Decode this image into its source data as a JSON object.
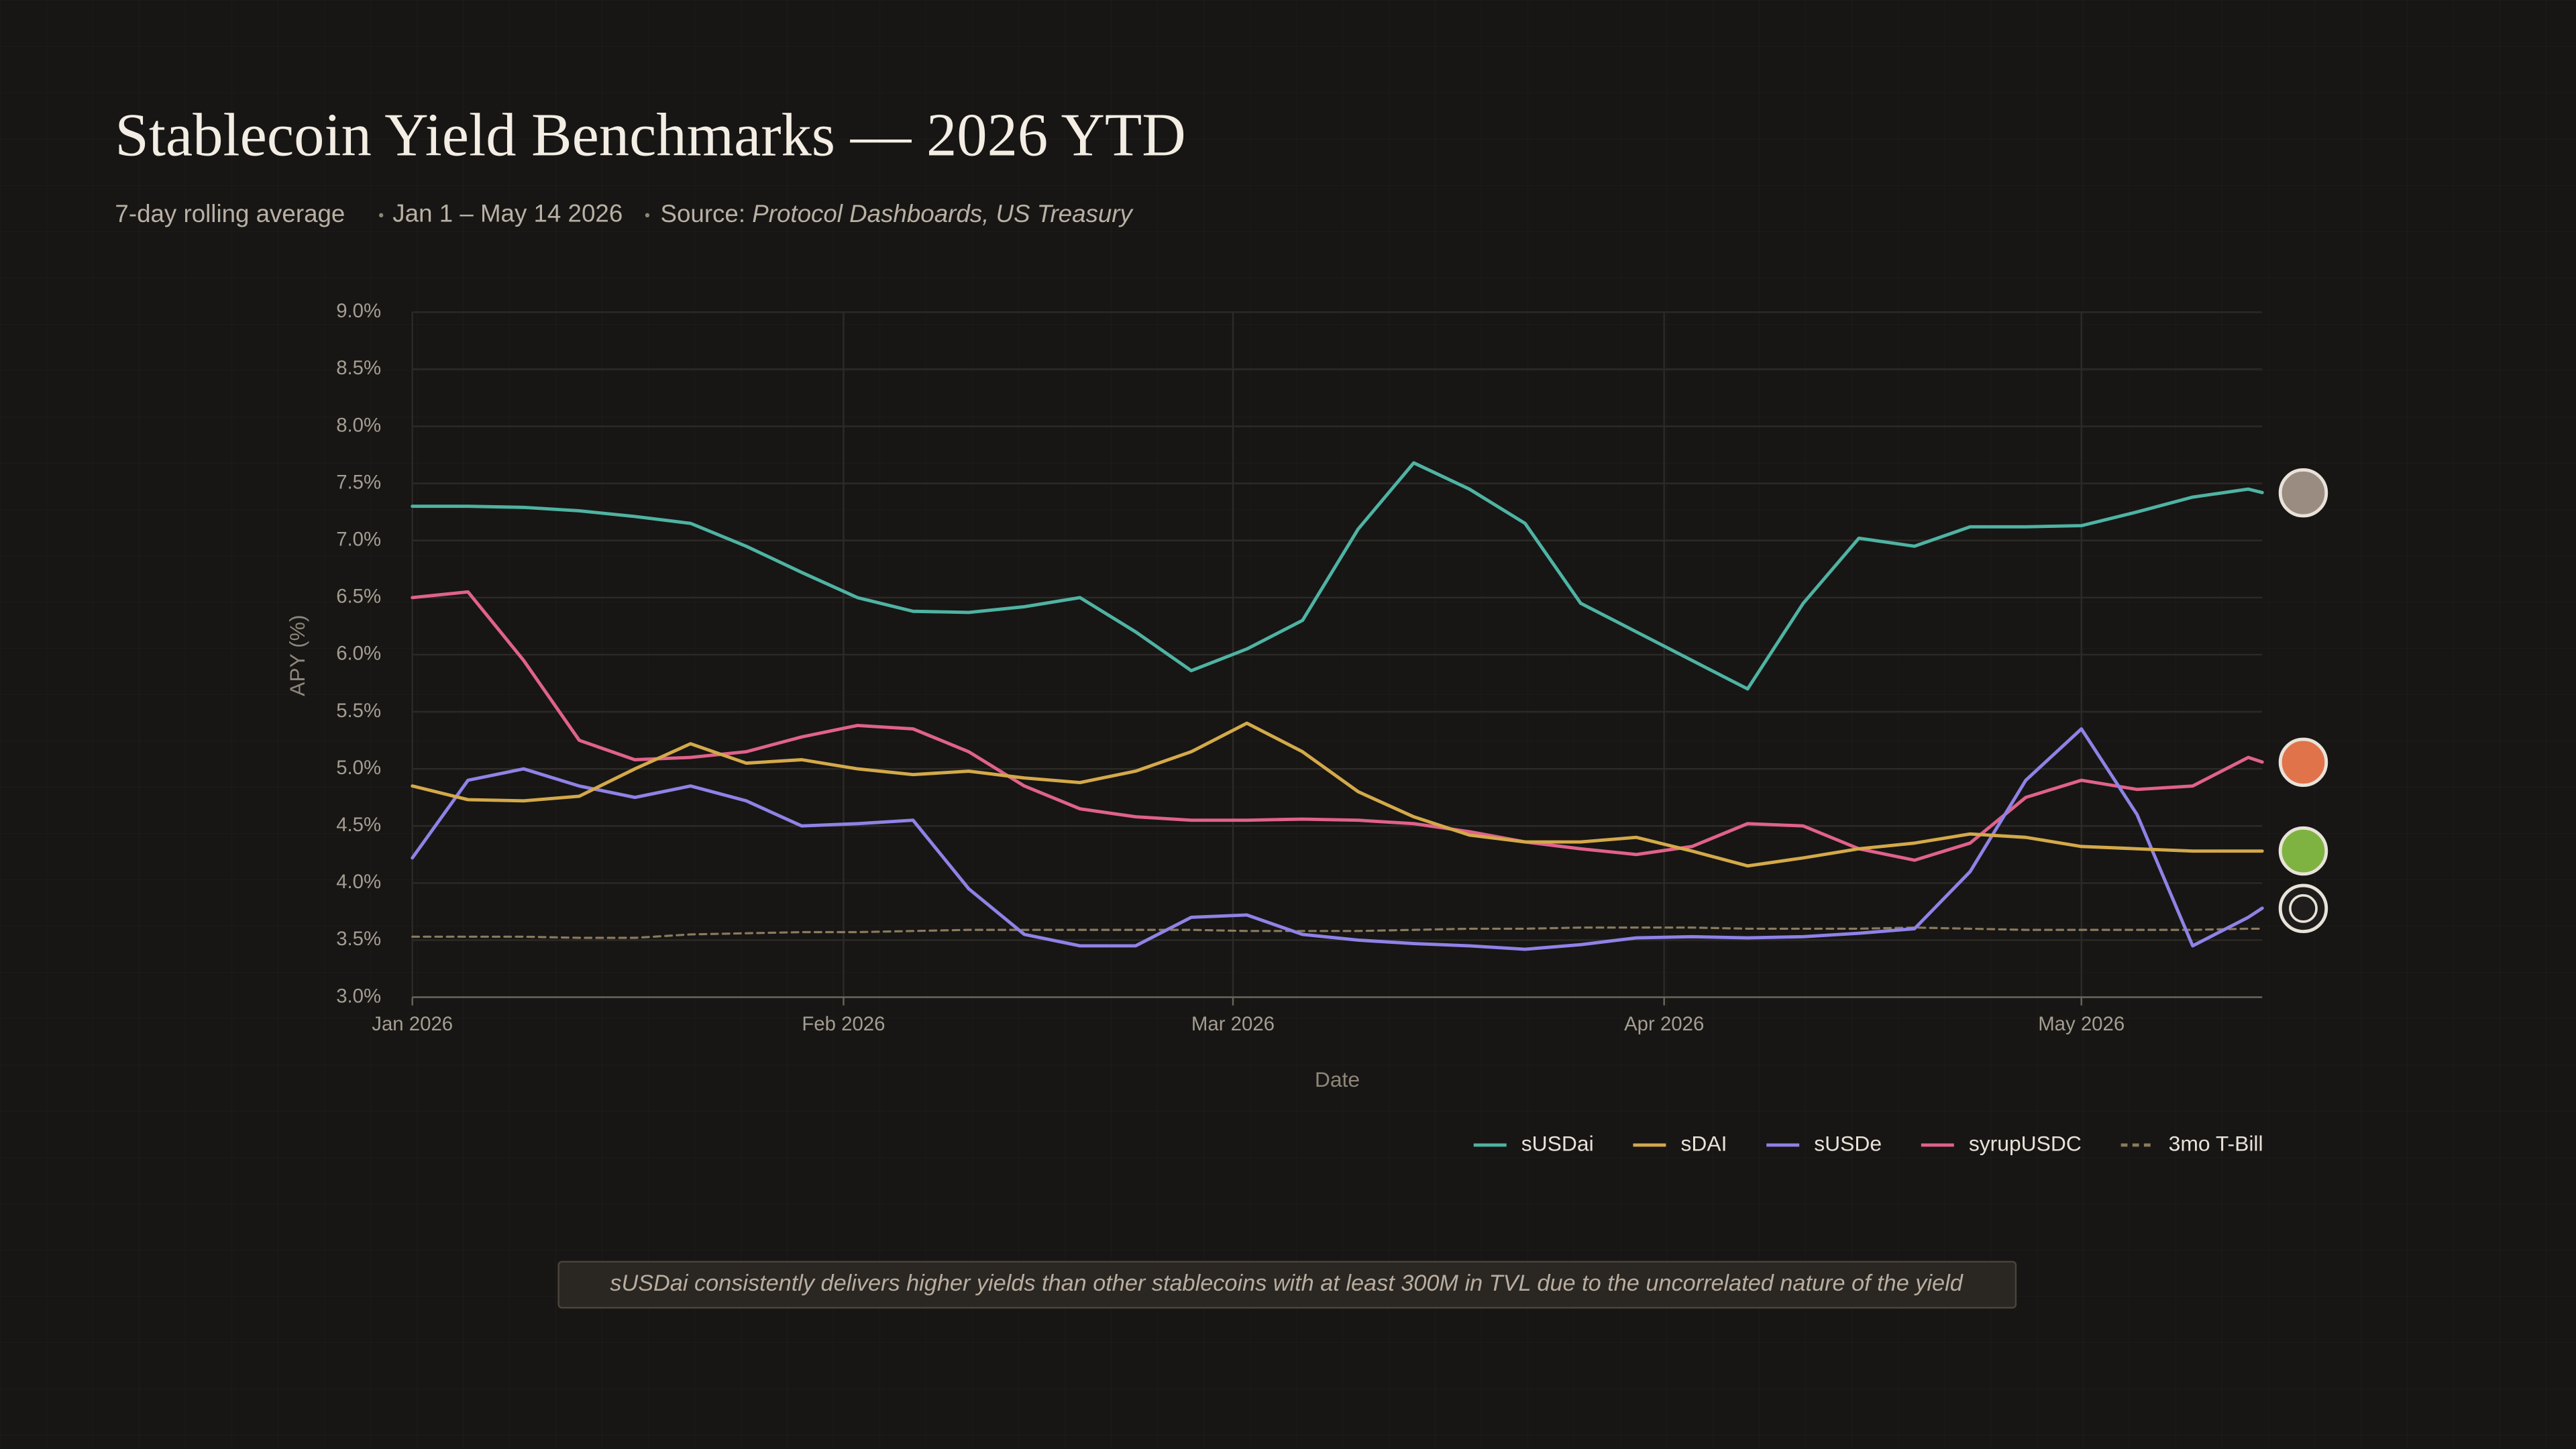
{
  "chart_data": {
    "type": "line",
    "title": "Stablecoin Yield Benchmarks — 2026 YTD",
    "subtitle": {
      "period": "7-day rolling average",
      "range": "Jan 1 – May 14 2026",
      "source_label": "Source:",
      "source": "Protocol Dashboards, US Treasury"
    },
    "x_label": "Date",
    "y_label": "APY (%)",
    "annotation": "sUSDai consistently delivers higher yields than other stablecoins with at least 300M in TVL due to the uncorrelated nature of the yield",
    "x": [
      0,
      4,
      8,
      12,
      16,
      20,
      24,
      28,
      32,
      36,
      40,
      44,
      48,
      52,
      56,
      60,
      64,
      68,
      72,
      76,
      80,
      84,
      88,
      92,
      96,
      100,
      104,
      108,
      112,
      116,
      120,
      124,
      128,
      132,
      133
    ],
    "xlim": [
      0,
      133
    ],
    "xticks": [
      {
        "value": 0,
        "label": "Jan 2026"
      },
      {
        "value": 31,
        "label": "Feb 2026"
      },
      {
        "value": 59,
        "label": "Mar 2026"
      },
      {
        "value": 90,
        "label": "Apr 2026"
      },
      {
        "value": 120,
        "label": "May 2026"
      }
    ],
    "ylim": [
      3.0,
      9.0
    ],
    "yticks": [
      {
        "value": 3.0,
        "label": "3.0%"
      },
      {
        "value": 3.5,
        "label": "3.5%"
      },
      {
        "value": 4.0,
        "label": "4.0%"
      },
      {
        "value": 4.5,
        "label": "4.5%"
      },
      {
        "value": 5.0,
        "label": "5.0%"
      },
      {
        "value": 5.5,
        "label": "5.5%"
      },
      {
        "value": 6.0,
        "label": "6.0%"
      },
      {
        "value": 6.5,
        "label": "6.5%"
      },
      {
        "value": 7.0,
        "label": "7.0%"
      },
      {
        "value": 7.5,
        "label": "7.5%"
      },
      {
        "value": 8.0,
        "label": "8.0%"
      },
      {
        "value": 8.5,
        "label": "8.5%"
      },
      {
        "value": 9.0,
        "label": "9.0%"
      }
    ],
    "grid": true,
    "series": [
      {
        "name": "sUSDai",
        "color": "#4fb3a3",
        "values": [
          7.3,
          7.3,
          7.29,
          7.26,
          7.21,
          7.15,
          6.95,
          6.72,
          6.5,
          6.38,
          6.37,
          6.42,
          6.5,
          6.2,
          5.86,
          6.05,
          6.3,
          7.1,
          7.68,
          7.45,
          7.15,
          6.45,
          6.2,
          5.95,
          5.7,
          6.45,
          7.02,
          6.95,
          7.12,
          7.12,
          7.13,
          7.25,
          7.38,
          7.45,
          7.42
        ]
      },
      {
        "name": "sDAI",
        "color": "#d4a94a",
        "values": [
          4.85,
          4.73,
          4.72,
          4.76,
          5.0,
          5.22,
          5.05,
          5.08,
          5.0,
          4.95,
          4.98,
          4.92,
          4.88,
          4.98,
          5.15,
          5.4,
          5.15,
          4.8,
          4.58,
          4.42,
          4.36,
          4.36,
          4.4,
          4.28,
          4.15,
          4.22,
          4.3,
          4.35,
          4.43,
          4.4,
          4.32,
          4.3,
          4.28,
          4.28,
          4.28
        ]
      },
      {
        "name": "sUSDe",
        "color": "#8f82e6",
        "values": [
          4.22,
          4.9,
          5.0,
          4.85,
          4.75,
          4.85,
          4.72,
          4.5,
          4.52,
          4.55,
          3.95,
          3.55,
          3.45,
          3.45,
          3.7,
          3.72,
          3.55,
          3.5,
          3.47,
          3.45,
          3.42,
          3.46,
          3.52,
          3.53,
          3.52,
          3.53,
          3.56,
          3.6,
          4.1,
          4.9,
          5.35,
          4.6,
          3.45,
          3.7,
          3.78
        ]
      },
      {
        "name": "syrupUSDC",
        "color": "#e0628a",
        "values": [
          6.5,
          6.55,
          5.95,
          5.25,
          5.08,
          5.1,
          5.15,
          5.28,
          5.38,
          5.35,
          5.15,
          4.85,
          4.65,
          4.58,
          4.55,
          4.55,
          4.56,
          4.55,
          4.52,
          4.45,
          4.36,
          4.3,
          4.25,
          4.32,
          4.52,
          4.5,
          4.3,
          4.2,
          4.35,
          4.75,
          4.9,
          4.82,
          4.85,
          5.1,
          5.06
        ]
      },
      {
        "name": "3mo T-Bill",
        "color": "#8a7a5e",
        "dashed": true,
        "values": [
          3.53,
          3.53,
          3.53,
          3.52,
          3.52,
          3.55,
          3.56,
          3.57,
          3.57,
          3.58,
          3.59,
          3.59,
          3.59,
          3.59,
          3.59,
          3.58,
          3.58,
          3.58,
          3.59,
          3.6,
          3.6,
          3.61,
          3.61,
          3.61,
          3.6,
          3.6,
          3.6,
          3.61,
          3.6,
          3.59,
          3.59,
          3.59,
          3.59,
          3.6,
          3.6
        ]
      }
    ]
  }
}
